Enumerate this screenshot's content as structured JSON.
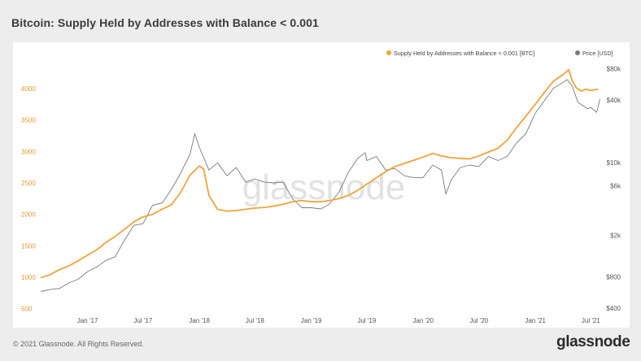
{
  "title": "Bitcoin: Supply Held by Addresses with Balance < 0.001",
  "footer": {
    "copyright": "© 2021 Glassnode. All Rights Reserved.",
    "brand": "glassnode"
  },
  "watermark": "glassnode",
  "colors": {
    "supply": "#f0a33a",
    "price": "#7a7a7a",
    "left_axis_text": "#e5972c",
    "right_axis_text": "#555555"
  },
  "chart_data": {
    "type": "line",
    "title": "Bitcoin: Supply Held by Addresses with Balance < 0.001",
    "x_ticks": [
      "Jan '17",
      "Jul '17",
      "Jan '18",
      "Jul '18",
      "Jan '19",
      "Jul '19",
      "Jan '20",
      "Jul '20",
      "Jan '21",
      "Jul '21"
    ],
    "x_range": [
      "2016-08-01",
      "2021-08-01"
    ],
    "y_left": {
      "ticks": [
        500,
        1000,
        1500,
        2000,
        2500,
        3000,
        3500,
        4000
      ],
      "range": [
        430,
        4400
      ]
    },
    "y_right": {
      "scale": "log",
      "ticks": [
        "$400",
        "$800",
        "$2k",
        "$6k",
        "$10k",
        "$40k",
        "$80k"
      ],
      "tick_values": [
        400,
        800,
        2000,
        6000,
        10000,
        40000,
        80000
      ],
      "range": [
        360,
        90000
      ]
    },
    "legend": {
      "position": "top-right",
      "entries": [
        "Supply Held by Addresses with Balance < 0.001 [BTC]",
        "Price [USD]"
      ]
    },
    "grid": false,
    "series": [
      {
        "name": "Supply Held by Addresses with Balance < 0.001 [BTC]",
        "axis": "left",
        "points": [
          [
            "2016-08-01",
            990
          ],
          [
            "2016-09-01",
            1040
          ],
          [
            "2016-10-01",
            1120
          ],
          [
            "2016-11-01",
            1180
          ],
          [
            "2016-12-01",
            1260
          ],
          [
            "2017-01-01",
            1350
          ],
          [
            "2017-02-01",
            1440
          ],
          [
            "2017-03-01",
            1550
          ],
          [
            "2017-04-01",
            1650
          ],
          [
            "2017-05-01",
            1760
          ],
          [
            "2017-06-01",
            1880
          ],
          [
            "2017-07-01",
            1960
          ],
          [
            "2017-08-01",
            2000
          ],
          [
            "2017-09-01",
            2080
          ],
          [
            "2017-10-01",
            2150
          ],
          [
            "2017-11-01",
            2350
          ],
          [
            "2017-12-01",
            2620
          ],
          [
            "2018-01-01",
            2770
          ],
          [
            "2018-01-15",
            2720
          ],
          [
            "2018-02-01",
            2300
          ],
          [
            "2018-03-01",
            2080
          ],
          [
            "2018-04-01",
            2050
          ],
          [
            "2018-05-01",
            2060
          ],
          [
            "2018-06-01",
            2080
          ],
          [
            "2018-07-01",
            2100
          ],
          [
            "2018-08-01",
            2110
          ],
          [
            "2018-09-01",
            2130
          ],
          [
            "2018-10-01",
            2160
          ],
          [
            "2018-11-01",
            2200
          ],
          [
            "2018-12-01",
            2220
          ],
          [
            "2019-01-01",
            2200
          ],
          [
            "2019-02-01",
            2200
          ],
          [
            "2019-03-01",
            2220
          ],
          [
            "2019-04-01",
            2250
          ],
          [
            "2019-05-01",
            2300
          ],
          [
            "2019-06-01",
            2380
          ],
          [
            "2019-07-01",
            2480
          ],
          [
            "2019-08-01",
            2580
          ],
          [
            "2019-09-01",
            2680
          ],
          [
            "2019-10-01",
            2760
          ],
          [
            "2019-11-01",
            2810
          ],
          [
            "2019-12-01",
            2860
          ],
          [
            "2020-01-01",
            2910
          ],
          [
            "2020-02-01",
            2970
          ],
          [
            "2020-03-01",
            2930
          ],
          [
            "2020-04-01",
            2900
          ],
          [
            "2020-05-01",
            2890
          ],
          [
            "2020-06-01",
            2880
          ],
          [
            "2020-07-01",
            2930
          ],
          [
            "2020-08-01",
            2990
          ],
          [
            "2020-09-01",
            3050
          ],
          [
            "2020-10-01",
            3180
          ],
          [
            "2020-11-01",
            3380
          ],
          [
            "2020-12-01",
            3560
          ],
          [
            "2021-01-01",
            3750
          ],
          [
            "2021-02-01",
            3950
          ],
          [
            "2021-03-01",
            4120
          ],
          [
            "2021-04-01",
            4220
          ],
          [
            "2021-04-20",
            4300
          ],
          [
            "2021-05-01",
            4130
          ],
          [
            "2021-05-15",
            4010
          ],
          [
            "2021-06-01",
            3960
          ],
          [
            "2021-06-15",
            3990
          ],
          [
            "2021-07-01",
            3970
          ],
          [
            "2021-07-25",
            3990
          ]
        ]
      },
      {
        "name": "Price [USD]",
        "axis": "right",
        "points": [
          [
            "2016-08-01",
            580
          ],
          [
            "2016-09-01",
            605
          ],
          [
            "2016-10-01",
            620
          ],
          [
            "2016-11-01",
            700
          ],
          [
            "2016-12-01",
            760
          ],
          [
            "2017-01-01",
            900
          ],
          [
            "2017-02-01",
            1000
          ],
          [
            "2017-03-01",
            1150
          ],
          [
            "2017-04-01",
            1250
          ],
          [
            "2017-05-01",
            1800
          ],
          [
            "2017-06-01",
            2500
          ],
          [
            "2017-07-01",
            2600
          ],
          [
            "2017-08-01",
            3900
          ],
          [
            "2017-09-01",
            4100
          ],
          [
            "2017-10-01",
            5500
          ],
          [
            "2017-11-01",
            8000
          ],
          [
            "2017-12-01",
            12000
          ],
          [
            "2017-12-17",
            19000
          ],
          [
            "2018-01-01",
            14000
          ],
          [
            "2018-02-01",
            8500
          ],
          [
            "2018-03-01",
            10000
          ],
          [
            "2018-04-01",
            7500
          ],
          [
            "2018-05-01",
            9000
          ],
          [
            "2018-06-01",
            6500
          ],
          [
            "2018-07-01",
            7000
          ],
          [
            "2018-08-01",
            6500
          ],
          [
            "2018-09-01",
            6400
          ],
          [
            "2018-10-01",
            6500
          ],
          [
            "2018-11-01",
            4500
          ],
          [
            "2018-12-01",
            3700
          ],
          [
            "2019-01-01",
            3700
          ],
          [
            "2019-02-01",
            3600
          ],
          [
            "2019-03-01",
            4000
          ],
          [
            "2019-04-01",
            5200
          ],
          [
            "2019-05-01",
            8000
          ],
          [
            "2019-06-01",
            11000
          ],
          [
            "2019-06-26",
            12500
          ],
          [
            "2019-07-01",
            10500
          ],
          [
            "2019-08-01",
            11500
          ],
          [
            "2019-09-01",
            8500
          ],
          [
            "2019-10-01",
            8800
          ],
          [
            "2019-11-01",
            7500
          ],
          [
            "2019-12-01",
            7200
          ],
          [
            "2020-01-01",
            7200
          ],
          [
            "2020-02-01",
            9500
          ],
          [
            "2020-03-01",
            8500
          ],
          [
            "2020-03-15",
            5000
          ],
          [
            "2020-04-01",
            6800
          ],
          [
            "2020-05-01",
            9000
          ],
          [
            "2020-06-01",
            9500
          ],
          [
            "2020-07-01",
            9200
          ],
          [
            "2020-08-01",
            11500
          ],
          [
            "2020-09-01",
            10500
          ],
          [
            "2020-10-01",
            11500
          ],
          [
            "2020-11-01",
            15500
          ],
          [
            "2020-12-01",
            19000
          ],
          [
            "2021-01-01",
            30000
          ],
          [
            "2021-02-01",
            40000
          ],
          [
            "2021-03-01",
            52000
          ],
          [
            "2021-04-01",
            59000
          ],
          [
            "2021-04-14",
            63000
          ],
          [
            "2021-05-01",
            55000
          ],
          [
            "2021-05-20",
            38000
          ],
          [
            "2021-06-01",
            36000
          ],
          [
            "2021-06-20",
            33000
          ],
          [
            "2021-07-01",
            34000
          ],
          [
            "2021-07-20",
            30500
          ],
          [
            "2021-07-31",
            41000
          ]
        ]
      }
    ]
  }
}
